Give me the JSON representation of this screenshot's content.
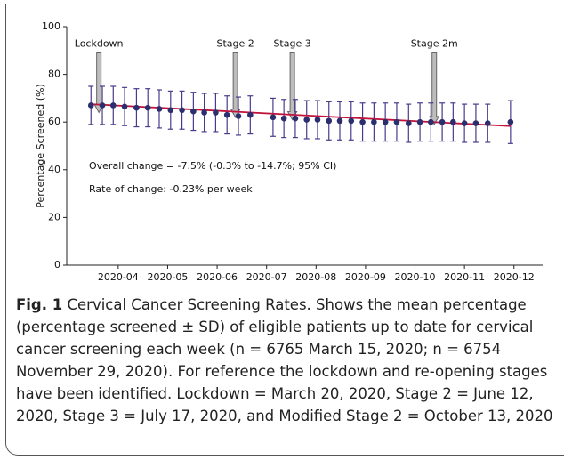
{
  "chart_data": {
    "type": "scatter",
    "y_label": "Percentage Screened (%)",
    "xlim": [
      2.96,
      12.4
    ],
    "xticks": [
      {
        "value": 4,
        "label": "2020-04"
      },
      {
        "value": 5,
        "label": "2020-05"
      },
      {
        "value": 6,
        "label": "2020-06"
      },
      {
        "value": 7,
        "label": "2020-07"
      },
      {
        "value": 8,
        "label": "2020-08"
      },
      {
        "value": 9,
        "label": "2020-09"
      },
      {
        "value": 10,
        "label": "2020-10"
      },
      {
        "value": 11,
        "label": "2020-11"
      },
      {
        "value": 12,
        "label": "2020-12"
      }
    ],
    "ylim": [
      0,
      100
    ],
    "yticks": [
      0,
      20,
      40,
      60,
      80,
      100
    ],
    "series": [
      {
        "color": "#2b2f6e",
        "error_color": "#4b3a8c",
        "x": [
          3.45,
          3.68,
          3.9,
          4.13,
          4.37,
          4.6,
          4.83,
          5.06,
          5.29,
          5.52,
          5.74,
          5.97,
          6.2,
          6.43,
          6.67,
          7.13,
          7.35,
          7.58,
          7.81,
          8.03,
          8.26,
          8.48,
          8.71,
          8.94,
          9.17,
          9.4,
          9.63,
          9.87,
          10.1,
          10.32,
          10.55,
          10.77,
          11.0,
          11.23,
          11.47,
          11.93
        ],
        "values": [
          67,
          67,
          67,
          66.5,
          66,
          66,
          65.5,
          65,
          65,
          64.5,
          64,
          64,
          63,
          62.5,
          63,
          62,
          61.5,
          61.5,
          61,
          61,
          60.5,
          60.5,
          60.5,
          60,
          60,
          60,
          60,
          59.5,
          60,
          60,
          60,
          60,
          59.5,
          59.5,
          59.5,
          60
        ],
        "errors": [
          8,
          8,
          8,
          8,
          8,
          8,
          8,
          8,
          8,
          8,
          8,
          8,
          8,
          8,
          8,
          8,
          8,
          8,
          8,
          8,
          8,
          8,
          8,
          8,
          8,
          8,
          8,
          8,
          8,
          8,
          8,
          8,
          8,
          8,
          8,
          9
        ]
      }
    ],
    "trend": {
      "color": "#c0143c",
      "x": [
        3.45,
        11.93
      ],
      "values": [
        67.5,
        58.3
      ]
    },
    "events": [
      {
        "label": "Lockdown",
        "x": 3.61,
        "top": 89,
        "tip": 64
      },
      {
        "label": "Stage 2",
        "x": 6.37,
        "top": 89,
        "tip": 62
      },
      {
        "label": "Stage 3",
        "x": 7.52,
        "top": 89,
        "tip": 61
      },
      {
        "label": "Stage 2m",
        "x": 10.39,
        "top": 89,
        "tip": 59
      }
    ],
    "annotations": [
      "Overall change = -7.5% (-0.3% to -14.7%; 95% CI)",
      "Rate of change: -0.23% per week"
    ]
  },
  "caption": {
    "label": "Fig. 1",
    "text": "Cervical Cancer Screening Rates. Shows the mean percentage (percentage screened ± SD) of eligible patients up to date for cervical cancer screening each week (n = 6765 March 15, 2020; n = 6754 November 29, 2020). For reference the lockdown and re-opening stages have been identified. Lockdown = March 20, 2020, Stage 2 = June 12, 2020, Stage 3 = July 17, 2020, and Modified Stage 2 = October 13, 2020"
  }
}
